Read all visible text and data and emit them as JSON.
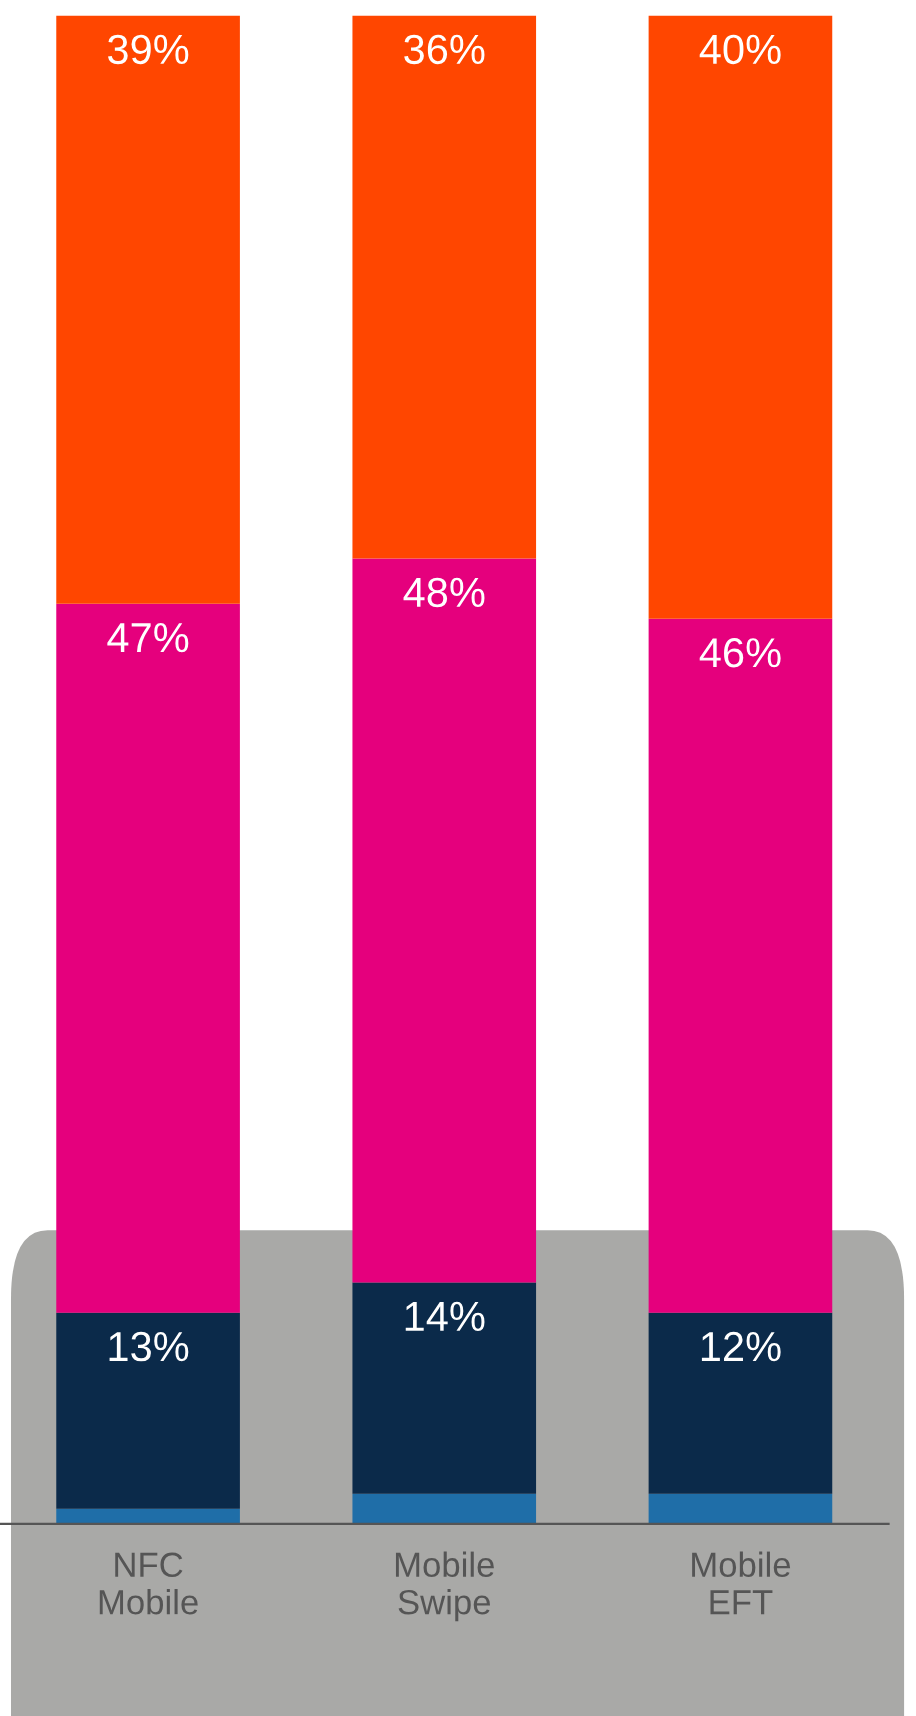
{
  "chart_data": {
    "type": "bar",
    "stacked": true,
    "categories": [
      "NFC\nMobile",
      "Mobile\nSwipe",
      "Mobile\nEFT"
    ],
    "series": [
      {
        "color": "#1f6ea8",
        "values": [
          1,
          2,
          2
        ],
        "value_labels": [
          null,
          null,
          null
        ]
      },
      {
        "color": "#0b2a4a",
        "values": [
          13,
          14,
          12
        ],
        "value_labels": [
          "13%",
          "14%",
          "12%"
        ]
      },
      {
        "color": "#e5007d",
        "values": [
          47,
          48,
          46
        ],
        "value_labels": [
          "47%",
          "48%",
          "46%"
        ]
      },
      {
        "color": "#ff4600",
        "values": [
          39,
          36,
          40
        ],
        "value_labels": [
          "39%",
          "36%",
          "40%"
        ]
      }
    ],
    "ylim": [
      0,
      100
    ],
    "tick_labels": "x",
    "grid": false,
    "legend": false
  }
}
